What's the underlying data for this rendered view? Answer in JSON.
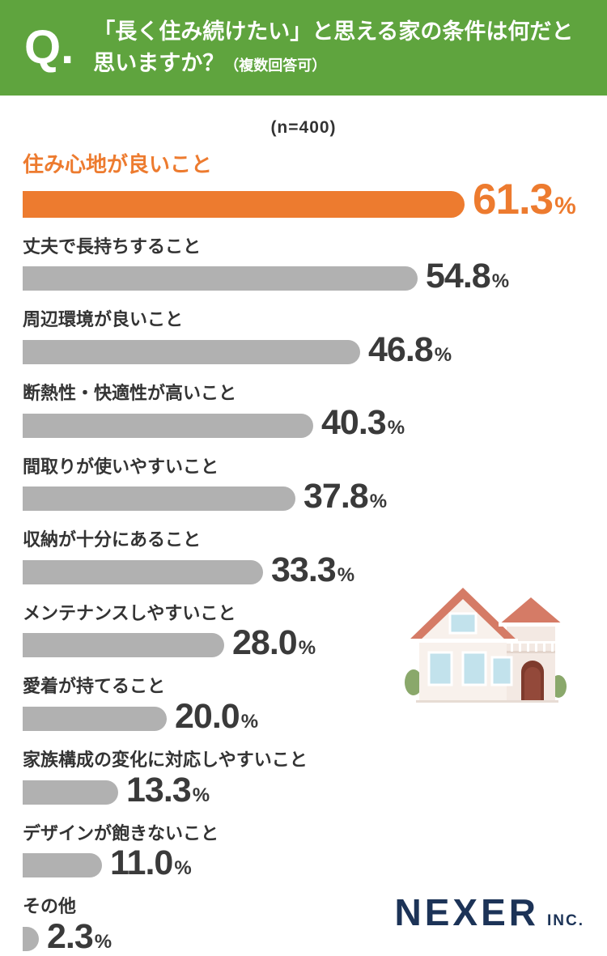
{
  "header": {
    "q_mark": "Q.",
    "question_line1": "「長く住み続けたい」と思える家の条件は何だと",
    "question_line2": "思いますか？",
    "question_note": "（複数回答可）"
  },
  "sample_size": "(n=400)",
  "chart_data": {
    "type": "bar",
    "orientation": "horizontal",
    "title": "「長く住み続けたい」と思える家の条件は何だと思いますか？（複数回答可）",
    "sample_size": "n=400",
    "categories": [
      "住み心地が良いこと",
      "丈夫で長持ちすること",
      "周辺環境が良いこと",
      "断熱性・快適性が高いこと",
      "間取りが使いやすいこと",
      "収納が十分にあること",
      "メンテナンスしやすいこと",
      "愛着が持てること",
      "家族構成の変化に対応しやすいこと",
      "デザインが飽きないこと",
      "その他"
    ],
    "values": [
      61.3,
      54.8,
      46.8,
      40.3,
      37.8,
      33.3,
      28.0,
      20.0,
      13.3,
      11.0,
      2.3
    ],
    "value_suffix": "%",
    "highlight_index": 0,
    "xlim": [
      0,
      65
    ],
    "grid": false,
    "legend": false
  },
  "footer": {
    "brand": "NEXER",
    "brand_suffix": "INC."
  },
  "colors": {
    "header_green": "#5fa43e",
    "highlight_orange": "#ed7b2f",
    "bar_gray": "#b1b1b1",
    "text_dark": "#3a3a3a",
    "logo_navy": "#1c3357"
  }
}
